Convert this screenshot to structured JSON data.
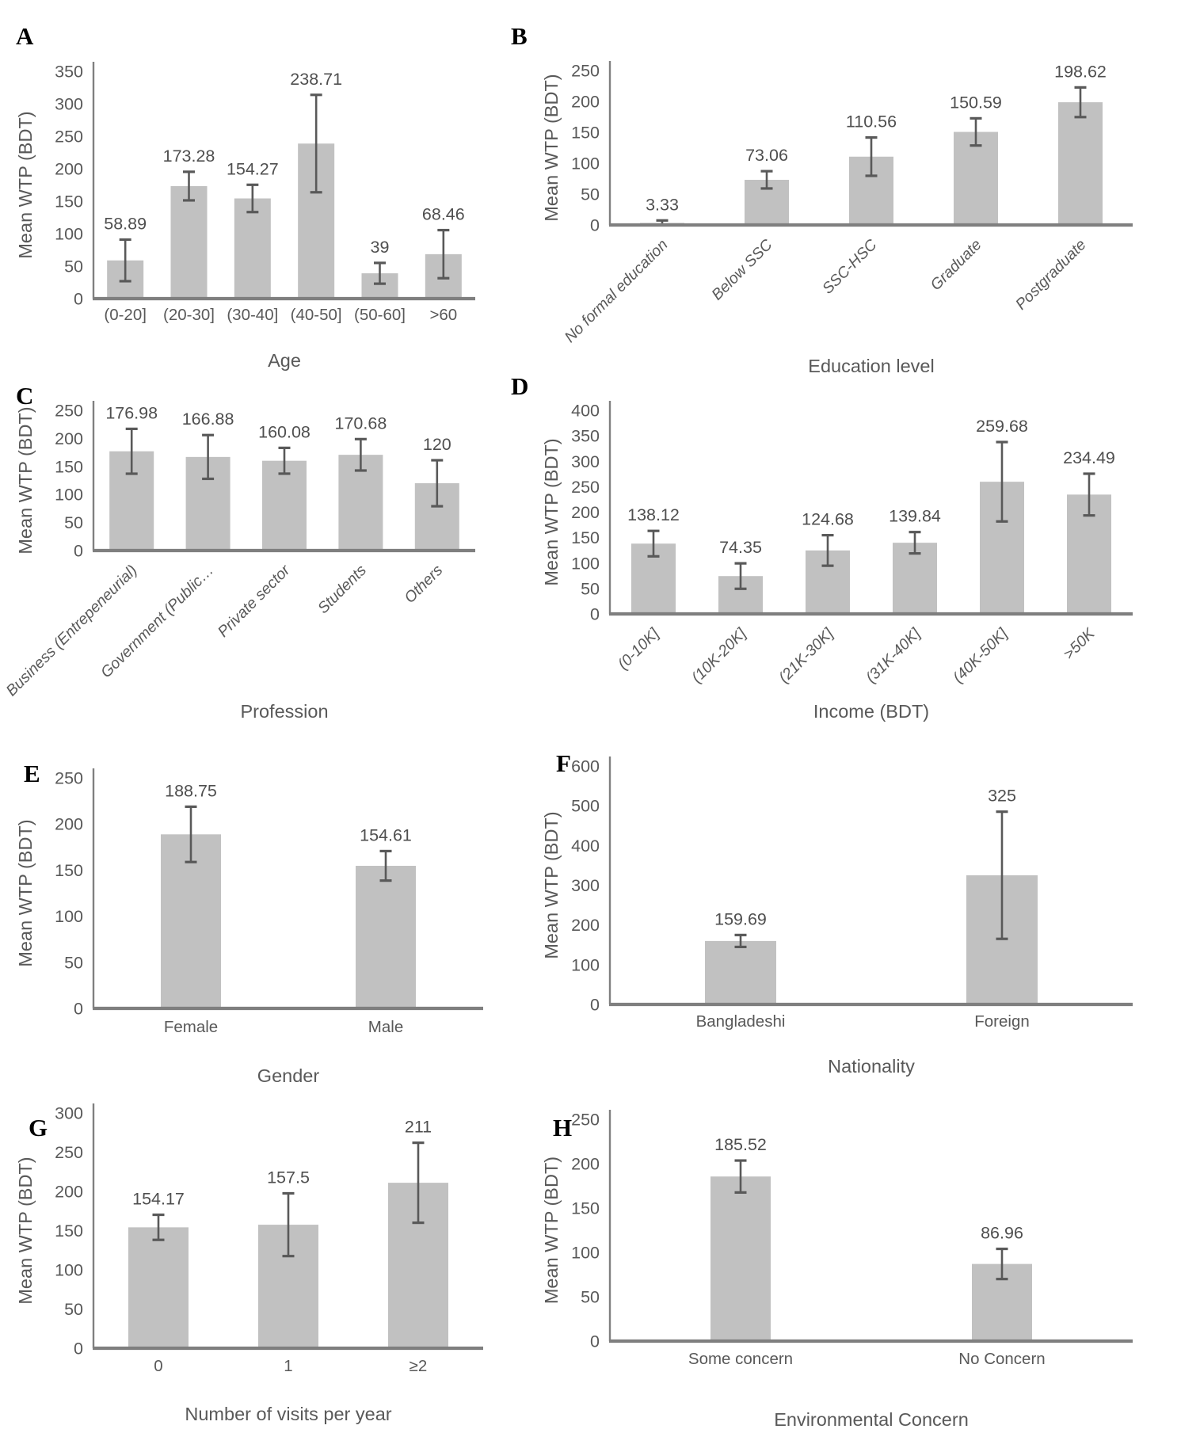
{
  "colors": {
    "background": "#ffffff",
    "bar_fill": "#c1c1c1",
    "error_bar": "#595959",
    "y_axis_line": "#808080",
    "x_baseline": "#7f7f7f",
    "text": "#595959",
    "value_label": "#4f4f4f",
    "panel_letter": "#000000"
  },
  "shared_y_axis_title": "Mean WTP (BDT)",
  "chart_data": [
    {
      "panel_letter": "A",
      "type": "bar",
      "title": "",
      "xlabel": "Age",
      "ylabel": "Mean WTP (BDT)",
      "categories": [
        "(0-20]",
        "(20-30]",
        "(30-40]",
        "(40-50]",
        "(50-60]",
        ">60"
      ],
      "values": [
        58.89,
        173.28,
        154.27,
        238.71,
        39,
        68.46
      ],
      "value_labels": [
        "58.89",
        "173.28",
        "154.27",
        "238.71",
        "39",
        "68.46"
      ],
      "errors_plus_minus": [
        32,
        22,
        21,
        75,
        16,
        37
      ],
      "ylim": [
        0,
        350
      ],
      "y_tick_step": 50,
      "x_tick_rotation_deg": 0,
      "x_tick_italic": false,
      "grid": false,
      "legend": false
    },
    {
      "panel_letter": "B",
      "type": "bar",
      "title": "",
      "xlabel": "Education level",
      "ylabel": "Mean WTP (BDT)",
      "categories": [
        "No formal education",
        "Below SSC",
        "SSC-HSC",
        "Graduate",
        "Postgraduate"
      ],
      "values": [
        3.33,
        73.06,
        110.56,
        150.59,
        198.62
      ],
      "value_labels": [
        "3.33",
        "73.06",
        "110.56",
        "150.59",
        "198.62"
      ],
      "errors_plus_minus": [
        4,
        14,
        31,
        22,
        24
      ],
      "ylim": [
        0,
        250
      ],
      "y_tick_step": 50,
      "x_tick_rotation_deg": 45,
      "x_tick_italic": true,
      "grid": false,
      "legend": false
    },
    {
      "panel_letter": "C",
      "type": "bar",
      "title": "",
      "xlabel": "Profession",
      "ylabel": "Mean WTP (BDT)",
      "categories": [
        "Business (Entrepeneurial)",
        "Government (Public…",
        "Private sector",
        "Students",
        "Others"
      ],
      "values": [
        176.98,
        166.88,
        160.08,
        170.68,
        120
      ],
      "value_labels": [
        "176.98",
        "166.88",
        "160.08",
        "170.68",
        "120"
      ],
      "errors_plus_minus": [
        40,
        39,
        23,
        28,
        41
      ],
      "ylim": [
        0,
        250
      ],
      "y_tick_step": 50,
      "x_tick_rotation_deg": 45,
      "x_tick_italic": true,
      "grid": false,
      "legend": false
    },
    {
      "panel_letter": "D",
      "type": "bar",
      "title": "",
      "xlabel": "Income (BDT)",
      "ylabel": "Mean WTP (BDT)",
      "categories": [
        "(0-10K]",
        "(10K-20K]",
        "(21K-30K]",
        "(31K-40K]",
        "(40K-50K]",
        ">50K"
      ],
      "values": [
        138.12,
        74.35,
        124.68,
        139.84,
        259.68,
        234.49
      ],
      "value_labels": [
        "138.12",
        "74.35",
        "124.68",
        "139.84",
        "259.68",
        "234.49"
      ],
      "errors_plus_minus": [
        25,
        25,
        30,
        21,
        78,
        41
      ],
      "ylim": [
        0,
        400
      ],
      "y_tick_step": 50,
      "x_tick_rotation_deg": 45,
      "x_tick_italic": true,
      "grid": false,
      "legend": false
    },
    {
      "panel_letter": "E",
      "type": "bar",
      "title": "",
      "xlabel": "Gender",
      "ylabel": "Mean WTP (BDT)",
      "categories": [
        "Female",
        "Male"
      ],
      "values": [
        188.75,
        154.61
      ],
      "value_labels": [
        "188.75",
        "154.61"
      ],
      "errors_plus_minus": [
        30,
        16
      ],
      "ylim": [
        0,
        250
      ],
      "y_tick_step": 50,
      "x_tick_rotation_deg": 0,
      "x_tick_italic": false,
      "grid": false,
      "legend": false
    },
    {
      "panel_letter": "F",
      "type": "bar",
      "title": "",
      "xlabel": "Nationality",
      "ylabel": "Mean WTP (BDT)",
      "categories": [
        "Bangladeshi",
        "Foreign"
      ],
      "values": [
        159.69,
        325
      ],
      "value_labels": [
        "159.69",
        "325"
      ],
      "errors_plus_minus": [
        15,
        160
      ],
      "ylim": [
        0,
        600
      ],
      "y_tick_step": 100,
      "x_tick_rotation_deg": 0,
      "x_tick_italic": false,
      "grid": false,
      "legend": false
    },
    {
      "panel_letter": "G",
      "type": "bar",
      "title": "",
      "xlabel": "Number of visits per year",
      "ylabel": "Mean WTP (BDT)",
      "categories": [
        "0",
        "1",
        "≥2"
      ],
      "values": [
        154.17,
        157.5,
        211
      ],
      "value_labels": [
        "154.17",
        "157.5",
        "211"
      ],
      "errors_plus_minus": [
        16,
        40,
        51
      ],
      "ylim": [
        0,
        300
      ],
      "y_tick_step": 50,
      "x_tick_rotation_deg": 0,
      "x_tick_italic": false,
      "grid": false,
      "legend": false
    },
    {
      "panel_letter": "H",
      "type": "bar",
      "title": "",
      "xlabel": "Environmental Concern",
      "ylabel": "Mean WTP (BDT)",
      "categories": [
        "Some concern",
        "No Concern"
      ],
      "values": [
        185.52,
        86.96
      ],
      "value_labels": [
        "185.52",
        "86.96"
      ],
      "errors_plus_minus": [
        18,
        17
      ],
      "ylim": [
        0,
        250
      ],
      "y_tick_step": 50,
      "x_tick_rotation_deg": 0,
      "x_tick_italic": false,
      "grid": false,
      "legend": false
    }
  ]
}
